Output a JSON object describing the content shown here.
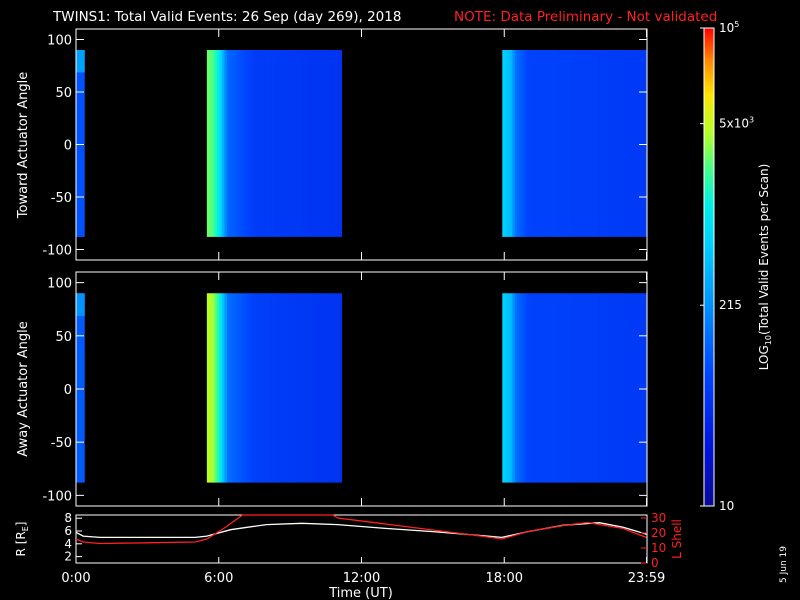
{
  "title": {
    "main": "TWINS1: Total Valid Events: 26 Sep (day 269), 2018",
    "note": "NOTE: Data Preliminary - Not validated",
    "note_color": "#ff2020"
  },
  "stamp": "5 Jun 19",
  "chart_data": [
    {
      "type": "heatmap",
      "panel": "toward",
      "ylabel": "Toward Actuator Angle",
      "ylim": [
        -110,
        110
      ],
      "yticks": [
        100,
        50,
        0,
        -50,
        -100
      ],
      "xlim_hours": [
        0,
        24
      ],
      "angle_range": [
        -88,
        90
      ],
      "scans": [
        {
          "start": "00:00",
          "end": "00:22",
          "level": 0.3,
          "edge_level": 0.48
        },
        {
          "start": "05:30",
          "end": "11:10",
          "profile": [
            [
              5.5,
              0.74
            ],
            [
              5.8,
              0.7
            ],
            [
              6.05,
              0.6
            ],
            [
              6.2,
              0.48
            ],
            [
              6.4,
              0.34
            ],
            [
              7.5,
              0.25
            ],
            [
              11.1,
              0.22
            ]
          ]
        },
        {
          "start": "17:55",
          "end": "24:00",
          "profile": [
            [
              17.9,
              0.56
            ],
            [
              18.3,
              0.5
            ],
            [
              18.5,
              0.36
            ],
            [
              19.0,
              0.27
            ],
            [
              24.0,
              0.24
            ]
          ]
        }
      ]
    },
    {
      "type": "heatmap",
      "panel": "away",
      "ylabel": "Away Actuator Angle",
      "ylim": [
        -110,
        110
      ],
      "yticks": [
        100,
        50,
        0,
        -50,
        -100
      ],
      "xlim_hours": [
        0,
        24
      ],
      "angle_range": [
        -88,
        90
      ],
      "scans": [
        {
          "start": "00:00",
          "end": "00:22",
          "level": 0.32,
          "edge_level": 0.45
        },
        {
          "start": "05:30",
          "end": "11:10",
          "profile": [
            [
              5.5,
              0.8
            ],
            [
              5.8,
              0.76
            ],
            [
              6.05,
              0.64
            ],
            [
              6.2,
              0.52
            ],
            [
              6.4,
              0.36
            ],
            [
              7.5,
              0.26
            ],
            [
              11.1,
              0.22
            ]
          ]
        },
        {
          "start": "17:55",
          "end": "24:00",
          "profile": [
            [
              17.9,
              0.56
            ],
            [
              18.3,
              0.5
            ],
            [
              18.5,
              0.36
            ],
            [
              19.0,
              0.27
            ],
            [
              24.0,
              0.24
            ]
          ]
        }
      ]
    },
    {
      "type": "line",
      "panel": "orbit",
      "ylabel": "R [RE]",
      "ylabel_main": "R [R",
      "ylabel_sub": "E",
      "ylabel_close": "]",
      "y2label": "L Shell",
      "xlabel": "Time (UT)",
      "xticks": [
        "0:00",
        "6:00",
        "12:00",
        "18:00",
        "23:59"
      ],
      "yticks": [
        2,
        4,
        6,
        8
      ],
      "y2ticks": [
        0,
        10,
        20,
        30
      ],
      "ylim": [
        1,
        8.5
      ],
      "y2lim": [
        0,
        32
      ],
      "series": [
        {
          "name": "R",
          "color": "#ffffff",
          "x": [
            0.0,
            0.3,
            1.0,
            3.0,
            5.0,
            5.5,
            6.5,
            8.0,
            9.5,
            11.0,
            13.0,
            15.0,
            17.0,
            17.9,
            19.0,
            20.5,
            22.0,
            23.0,
            23.98
          ],
          "y": [
            5.8,
            5.2,
            5.0,
            5.0,
            5.0,
            5.2,
            6.2,
            7.0,
            7.2,
            7.0,
            6.4,
            5.9,
            5.3,
            5.0,
            5.9,
            6.9,
            7.3,
            6.6,
            5.5
          ]
        },
        {
          "name": "L Shell",
          "color": "#ff2020",
          "x": [
            0.0,
            0.3,
            1.0,
            3.0,
            5.0,
            5.5,
            6.3,
            7.0,
            7.2,
            10.8,
            11.0,
            13.0,
            15.0,
            17.0,
            17.9,
            19.0,
            20.5,
            21.5,
            23.0,
            23.98
          ],
          "y": [
            16,
            14,
            13,
            13.5,
            14,
            16,
            24,
            32,
            32,
            32,
            30,
            26,
            22,
            18,
            16,
            21,
            25,
            27,
            23,
            17
          ]
        }
      ]
    }
  ],
  "colorbar": {
    "label_prefix": "LOG",
    "label_sub": "10",
    "label_suffix": "(Total Valid Events per Scan)",
    "labels": [
      {
        "text": "10",
        "sup": "5",
        "level": 1.0
      },
      {
        "text": "5x10",
        "sup": "3",
        "level": 0.8
      },
      {
        "text": "215",
        "sup": "",
        "level": 0.42
      },
      {
        "text": "10",
        "sup": "",
        "level": 0.0
      }
    ]
  }
}
